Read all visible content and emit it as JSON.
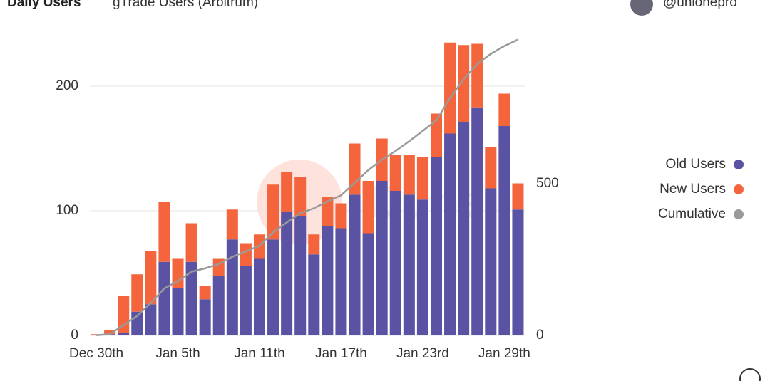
{
  "title": "Daily Users",
  "subtitle": "gTrade Users (Arbitrum)",
  "author": "@unionepro",
  "chart_data": {
    "type": "bar",
    "stacked": true,
    "watermark": "Dune",
    "categories": [
      "Dec 30th",
      null,
      null,
      null,
      null,
      null,
      "Jan 5th",
      null,
      null,
      null,
      null,
      null,
      "Jan 11th",
      null,
      null,
      null,
      null,
      null,
      "Jan 17th",
      null,
      null,
      null,
      null,
      null,
      "Jan 23rd",
      null,
      null,
      null,
      null,
      null,
      "Jan 29th",
      null
    ],
    "series": [
      {
        "name": "Old Users",
        "color": "#5a53a3",
        "values": [
          0,
          1,
          2,
          19,
          25,
          59,
          38,
          59,
          29,
          48,
          77,
          56,
          62,
          77,
          99,
          96,
          65,
          88,
          86,
          113,
          82,
          124,
          116,
          113,
          109,
          143,
          162,
          171,
          183,
          118,
          168,
          101
        ]
      },
      {
        "name": "New Users",
        "color": "#f4653d",
        "values": [
          1,
          3,
          30,
          30,
          43,
          48,
          24,
          31,
          11,
          14,
          24,
          18,
          19,
          44,
          32,
          31,
          16,
          23,
          20,
          41,
          42,
          34,
          29,
          32,
          34,
          35,
          73,
          62,
          51,
          33,
          26,
          21
        ]
      },
      {
        "name": "Cumulative",
        "color": "#9a9a9a",
        "type": "line",
        "axis": "y2",
        "values": [
          1,
          4,
          34,
          64,
          107,
          155,
          179,
          210,
          221,
          235,
          259,
          277,
          296,
          340,
          372,
          403,
          419,
          442,
          462,
          503,
          545,
          579,
          608,
          640,
          674,
          709,
          782,
          844,
          895,
          928,
          954,
          975
        ]
      }
    ],
    "ylim": [
      0,
      240
    ],
    "yticks": [
      0,
      100,
      200
    ],
    "y2lim": [
      0,
      986
    ],
    "y2ticks": [
      0,
      500
    ],
    "grid": true,
    "legend": "right"
  }
}
